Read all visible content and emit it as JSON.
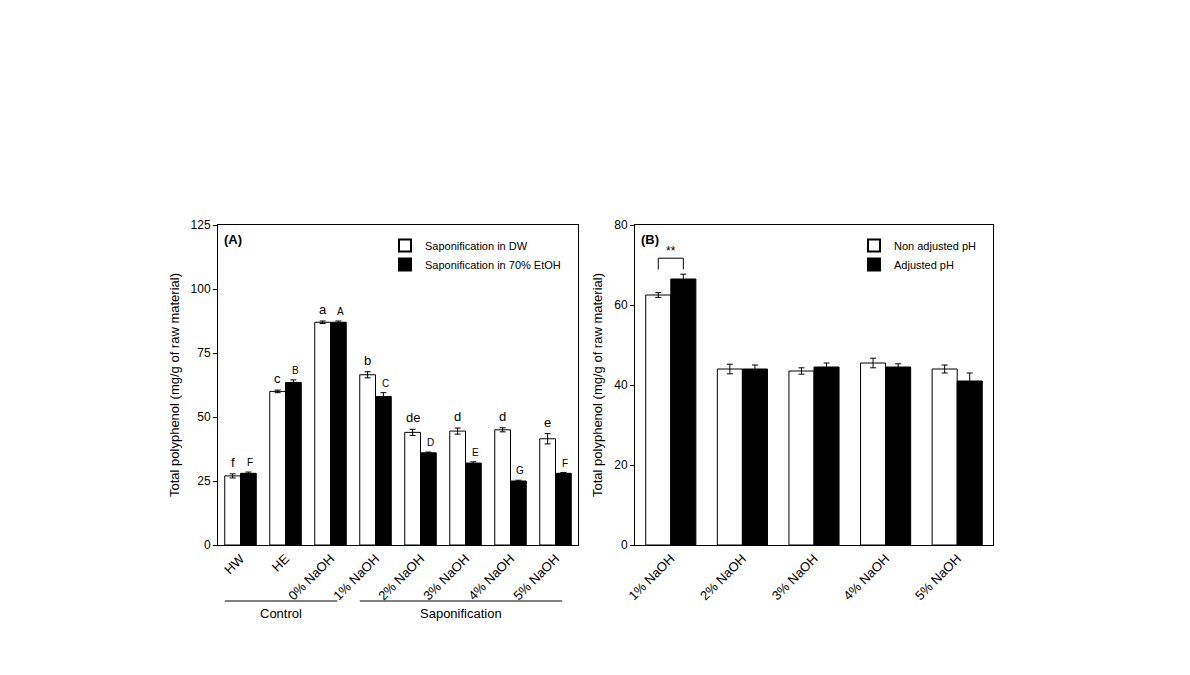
{
  "chart_data": [
    {
      "type": "bar",
      "title": "(A)",
      "y_label": "Total polyphenol (mg/g of raw material)",
      "categories": [
        "HW",
        "HE",
        "0% NaOH",
        "1% NaOH",
        "2% NaOH",
        "3% NaOH",
        "4% NaOH",
        "5% NaOH"
      ],
      "series": [
        {
          "name": "Saponification in DW",
          "color": "#ffffff",
          "values": [
            27,
            60,
            87,
            66.5,
            44,
            44.5,
            45,
            41.5
          ],
          "errors": [
            0.8,
            0.5,
            0.5,
            1.2,
            1.2,
            1.2,
            0.8,
            2
          ],
          "letters": [
            "f",
            "c",
            "a",
            "b",
            "de",
            "d",
            "d",
            "e"
          ]
        },
        {
          "name": "Saponification in 70% EtOH",
          "color": "#000000",
          "values": [
            28,
            63.5,
            87,
            58,
            36,
            32,
            25,
            28
          ],
          "errors": [
            0.5,
            1,
            0.5,
            1.5,
            0.3,
            0.5,
            0.3,
            0.3
          ],
          "letters": [
            "F",
            "B",
            "A",
            "C",
            "D",
            "E",
            "G",
            "F"
          ]
        }
      ],
      "groups": [
        {
          "label": "Control",
          "from": "HW",
          "to": "0% NaOH"
        },
        {
          "label": "Saponification",
          "from": "1% NaOH",
          "to": "5% NaOH"
        }
      ],
      "ylim": [
        0,
        125
      ],
      "yticks": [
        0,
        25,
        50,
        75,
        100,
        125
      ],
      "legend": "upper right",
      "grid": false
    },
    {
      "type": "bar",
      "title": "(B)",
      "y_label": "Total polyphenol (mg/g of raw material)",
      "categories": [
        "1% NaOH",
        "2% NaOH",
        "3% NaOH",
        "4% NaOH",
        "5% NaOH"
      ],
      "series": [
        {
          "name": "Non adjusted pH",
          "color": "#ffffff",
          "values": [
            62.5,
            44,
            43.5,
            45.5,
            44
          ],
          "errors": [
            0.6,
            1.2,
            0.8,
            1.2,
            1
          ]
        },
        {
          "name": "Adjusted pH",
          "color": "#000000",
          "values": [
            66.5,
            44,
            44.5,
            44.5,
            41
          ],
          "errors": [
            1.2,
            1,
            1,
            0.8,
            2
          ]
        }
      ],
      "significance": [
        {
          "category": "1% NaOH",
          "text": "**"
        }
      ],
      "ylim": [
        0,
        80
      ],
      "yticks": [
        0,
        20,
        40,
        60,
        80
      ],
      "legend": "upper right",
      "grid": false
    }
  ]
}
